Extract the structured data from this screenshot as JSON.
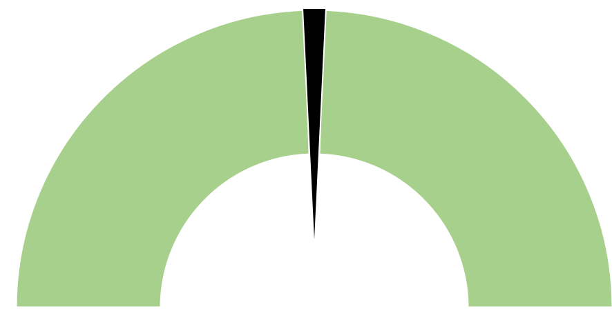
{
  "chart_data": {
    "type": "gauge",
    "title": "",
    "range": [
      0,
      100
    ],
    "value": 50,
    "segments": [
      {
        "from": 0,
        "to": 49,
        "color": "#a8d08d"
      },
      {
        "from": 51,
        "to": 100,
        "color": "#a8d08d"
      }
    ],
    "needle": {
      "color": "#000000"
    },
    "colors": {
      "band": "#a8d08d",
      "needle": "#000000",
      "separator": "#ffffff",
      "background": "#ffffff"
    }
  }
}
